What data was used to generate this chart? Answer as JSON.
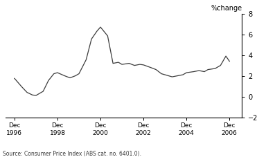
{
  "title": "%change",
  "source": "Source: Consumer Price Index (ABS cat. no. 6401.0).",
  "xlabel_tick_labels": [
    "Dec\n1996",
    "Dec\n1998",
    "Dec\n2000",
    "Dec\n2002",
    "Dec\n2004",
    "Dec\n2006"
  ],
  "xlabel_tick_positions": [
    1996.917,
    1998.917,
    2000.917,
    2002.917,
    2004.917,
    2006.917
  ],
  "ylim": [
    -2,
    8
  ],
  "yticks": [
    -2,
    0,
    2,
    4,
    6,
    8
  ],
  "xlim": [
    1996.5,
    2007.5
  ],
  "line_color": "#3c3c3c",
  "line_width": 0.9,
  "bg_color": "#ffffff",
  "data": [
    [
      1996.917,
      1.8
    ],
    [
      1997.25,
      1.0
    ],
    [
      1997.5,
      0.45
    ],
    [
      1997.75,
      0.2
    ],
    [
      1997.917,
      0.15
    ],
    [
      1998.25,
      0.55
    ],
    [
      1998.5,
      1.6
    ],
    [
      1998.75,
      2.25
    ],
    [
      1998.917,
      2.35
    ],
    [
      1999.25,
      2.05
    ],
    [
      1999.5,
      1.85
    ],
    [
      1999.75,
      2.05
    ],
    [
      1999.917,
      2.25
    ],
    [
      2000.25,
      3.6
    ],
    [
      2000.5,
      5.6
    ],
    [
      2000.75,
      6.35
    ],
    [
      2000.917,
      6.75
    ],
    [
      2001.25,
      5.9
    ],
    [
      2001.5,
      3.25
    ],
    [
      2001.75,
      3.35
    ],
    [
      2001.917,
      3.15
    ],
    [
      2002.25,
      3.25
    ],
    [
      2002.5,
      3.05
    ],
    [
      2002.75,
      3.15
    ],
    [
      2002.917,
      3.1
    ],
    [
      2003.25,
      2.85
    ],
    [
      2003.5,
      2.65
    ],
    [
      2003.75,
      2.25
    ],
    [
      2003.917,
      2.15
    ],
    [
      2004.25,
      1.95
    ],
    [
      2004.5,
      2.05
    ],
    [
      2004.75,
      2.15
    ],
    [
      2004.917,
      2.35
    ],
    [
      2005.25,
      2.45
    ],
    [
      2005.5,
      2.55
    ],
    [
      2005.75,
      2.45
    ],
    [
      2005.917,
      2.65
    ],
    [
      2006.25,
      2.75
    ],
    [
      2006.5,
      3.05
    ],
    [
      2006.75,
      3.95
    ],
    [
      2006.917,
      3.45
    ]
  ]
}
